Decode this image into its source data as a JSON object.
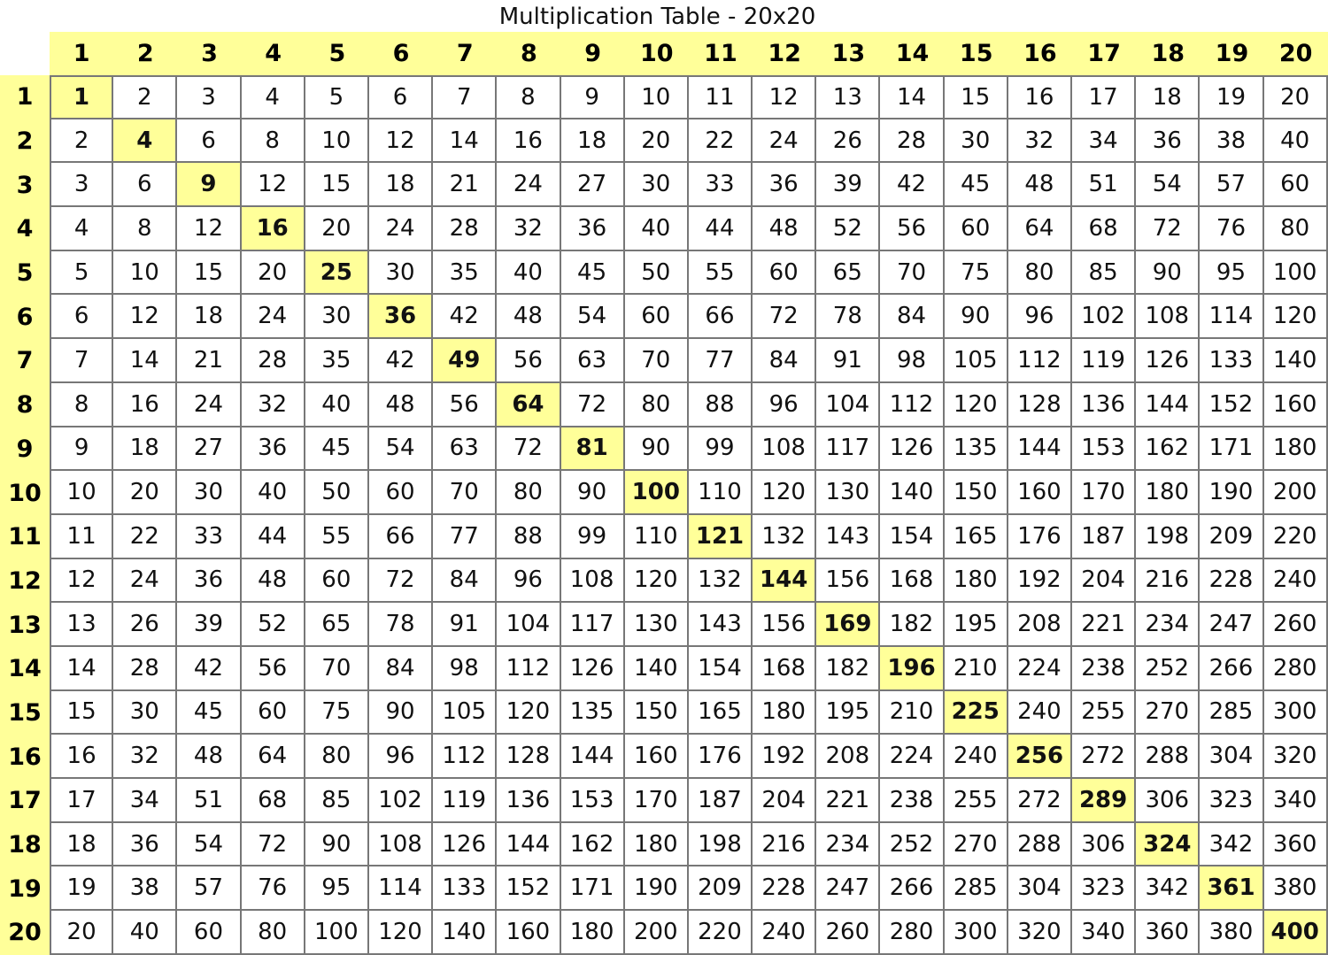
{
  "title": "Multiplication Table - 20x20",
  "column_headers": [
    1,
    2,
    3,
    4,
    5,
    6,
    7,
    8,
    9,
    10,
    11,
    12,
    13,
    14,
    15,
    16,
    17,
    18,
    19,
    20
  ],
  "row_headers": [
    1,
    2,
    3,
    4,
    5,
    6,
    7,
    8,
    9,
    10,
    11,
    12,
    13,
    14,
    15,
    16,
    17,
    18,
    19,
    20
  ],
  "highlight_color": "#ffff99",
  "highlight": "diagonal (squares) bold on yellow",
  "rows": [
    [
      1,
      2,
      3,
      4,
      5,
      6,
      7,
      8,
      9,
      10,
      11,
      12,
      13,
      14,
      15,
      16,
      17,
      18,
      19,
      20
    ],
    [
      2,
      4,
      6,
      8,
      10,
      12,
      14,
      16,
      18,
      20,
      22,
      24,
      26,
      28,
      30,
      32,
      34,
      36,
      38,
      40
    ],
    [
      3,
      6,
      9,
      12,
      15,
      18,
      21,
      24,
      27,
      30,
      33,
      36,
      39,
      42,
      45,
      48,
      51,
      54,
      57,
      60
    ],
    [
      4,
      8,
      12,
      16,
      20,
      24,
      28,
      32,
      36,
      40,
      44,
      48,
      52,
      56,
      60,
      64,
      68,
      72,
      76,
      80
    ],
    [
      5,
      10,
      15,
      20,
      25,
      30,
      35,
      40,
      45,
      50,
      55,
      60,
      65,
      70,
      75,
      80,
      85,
      90,
      95,
      100
    ],
    [
      6,
      12,
      18,
      24,
      30,
      36,
      42,
      48,
      54,
      60,
      66,
      72,
      78,
      84,
      90,
      96,
      102,
      108,
      114,
      120
    ],
    [
      7,
      14,
      21,
      28,
      35,
      42,
      49,
      56,
      63,
      70,
      77,
      84,
      91,
      98,
      105,
      112,
      119,
      126,
      133,
      140
    ],
    [
      8,
      16,
      24,
      32,
      40,
      48,
      56,
      64,
      72,
      80,
      88,
      96,
      104,
      112,
      120,
      128,
      136,
      144,
      152,
      160
    ],
    [
      9,
      18,
      27,
      36,
      45,
      54,
      63,
      72,
      81,
      90,
      99,
      108,
      117,
      126,
      135,
      144,
      153,
      162,
      171,
      180
    ],
    [
      10,
      20,
      30,
      40,
      50,
      60,
      70,
      80,
      90,
      100,
      110,
      120,
      130,
      140,
      150,
      160,
      170,
      180,
      190,
      200
    ],
    [
      11,
      22,
      33,
      44,
      55,
      66,
      77,
      88,
      99,
      110,
      121,
      132,
      143,
      154,
      165,
      176,
      187,
      198,
      209,
      220
    ],
    [
      12,
      24,
      36,
      48,
      60,
      72,
      84,
      96,
      108,
      120,
      132,
      144,
      156,
      168,
      180,
      192,
      204,
      216,
      228,
      240
    ],
    [
      13,
      26,
      39,
      52,
      65,
      78,
      91,
      104,
      117,
      130,
      143,
      156,
      169,
      182,
      195,
      208,
      221,
      234,
      247,
      260
    ],
    [
      14,
      28,
      42,
      56,
      70,
      84,
      98,
      112,
      126,
      140,
      154,
      168,
      182,
      196,
      210,
      224,
      238,
      252,
      266,
      280
    ],
    [
      15,
      30,
      45,
      60,
      75,
      90,
      105,
      120,
      135,
      150,
      165,
      180,
      195,
      210,
      225,
      240,
      255,
      270,
      285,
      300
    ],
    [
      16,
      32,
      48,
      64,
      80,
      96,
      112,
      128,
      144,
      160,
      176,
      192,
      208,
      224,
      240,
      256,
      272,
      288,
      304,
      320
    ],
    [
      17,
      34,
      51,
      68,
      85,
      102,
      119,
      136,
      153,
      170,
      187,
      204,
      221,
      238,
      255,
      272,
      289,
      306,
      323,
      340
    ],
    [
      18,
      36,
      54,
      72,
      90,
      108,
      126,
      144,
      162,
      180,
      198,
      216,
      234,
      252,
      270,
      288,
      306,
      324,
      342,
      360
    ],
    [
      19,
      38,
      57,
      76,
      95,
      114,
      133,
      152,
      171,
      190,
      209,
      228,
      247,
      266,
      285,
      304,
      323,
      342,
      361,
      380
    ],
    [
      20,
      40,
      60,
      80,
      100,
      120,
      140,
      160,
      180,
      200,
      220,
      240,
      260,
      280,
      300,
      320,
      340,
      360,
      380,
      400
    ]
  ]
}
